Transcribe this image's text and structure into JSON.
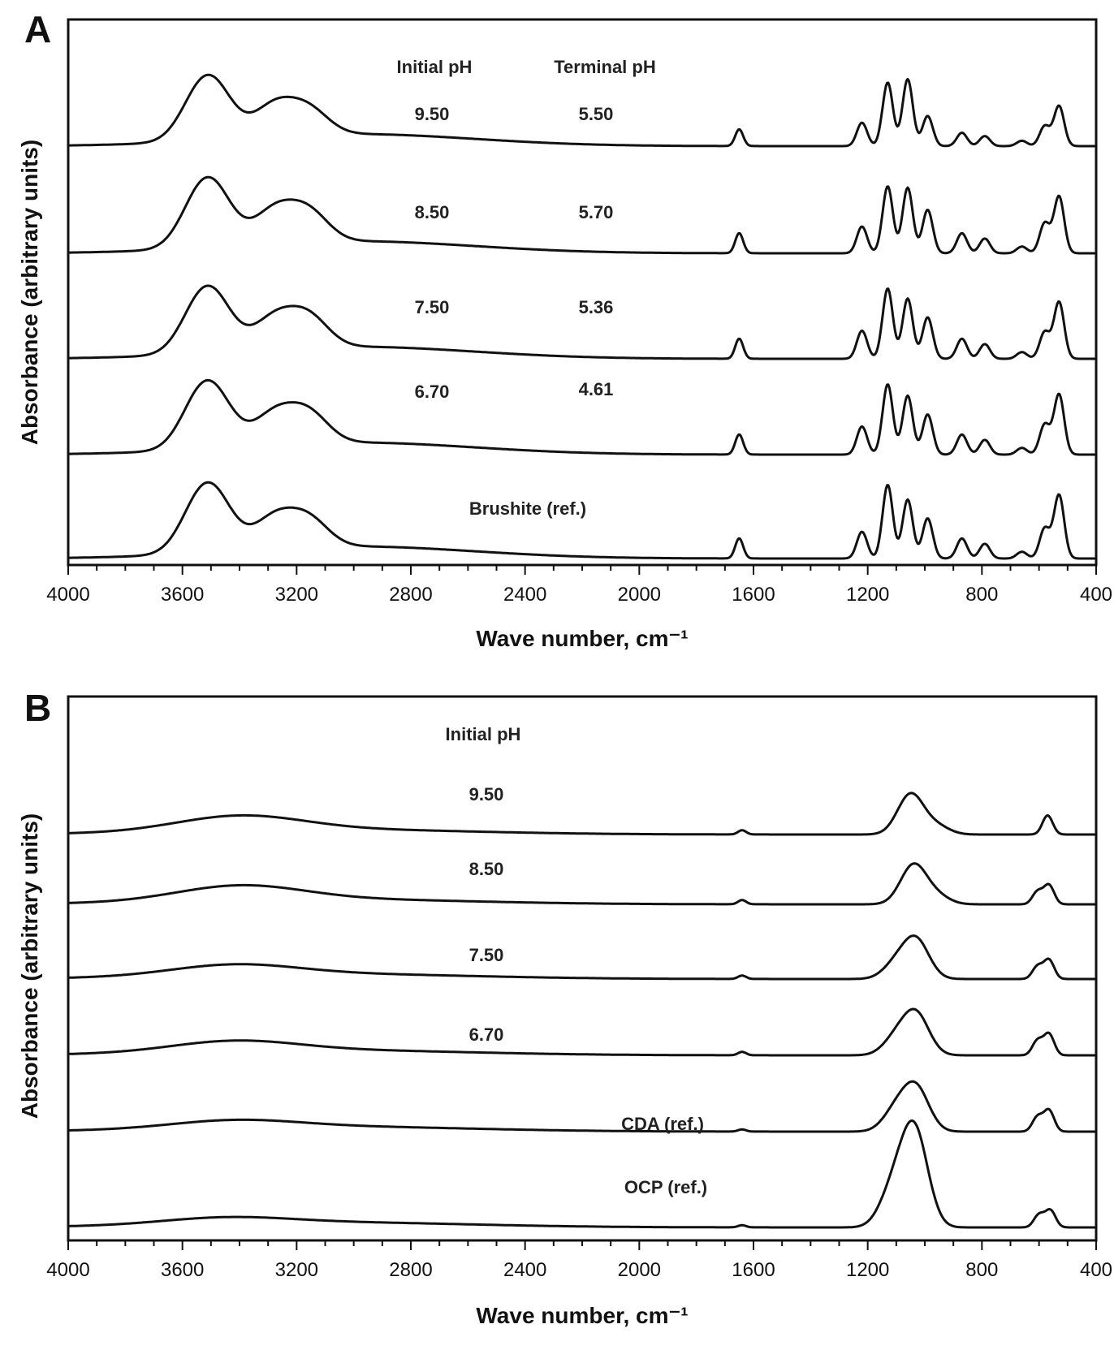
{
  "chart_data": [
    {
      "panel": "A",
      "type": "line",
      "xlabel": "Wave number, cm⁻¹",
      "ylabel": "Absorbance (arbitrary units)",
      "xlim": [
        4000,
        400
      ],
      "x_reversed": true,
      "xticks": [
        "4000",
        "3600",
        "3200",
        "2800",
        "2400",
        "2000",
        "1600",
        "1200",
        "800",
        "400"
      ],
      "column_headers": [
        "Initial pH",
        "Terminal pH"
      ],
      "series": [
        {
          "name": "9.50",
          "terminal_ph": "5.50",
          "offset": 4,
          "kind": "brushite",
          "peaks": [
            [
              3540,
              0.55
            ],
            [
              3480,
              0.52
            ],
            [
              3280,
              0.45
            ],
            [
              3160,
              0.38
            ],
            [
              1650,
              0.25
            ],
            [
              1220,
              0.35
            ],
            [
              1130,
              0.95
            ],
            [
              1060,
              1.0
            ],
            [
              990,
              0.45
            ],
            [
              870,
              0.2
            ],
            [
              790,
              0.15
            ],
            [
              660,
              0.08
            ],
            [
              580,
              0.3
            ],
            [
              530,
              0.6
            ]
          ]
        },
        {
          "name": "8.50",
          "terminal_ph": "5.70",
          "offset": 3,
          "kind": "brushite",
          "peaks": [
            [
              3540,
              0.6
            ],
            [
              3480,
              0.55
            ],
            [
              3280,
              0.48
            ],
            [
              3160,
              0.45
            ],
            [
              1650,
              0.3
            ],
            [
              1220,
              0.4
            ],
            [
              1130,
              1.0
            ],
            [
              1060,
              0.98
            ],
            [
              990,
              0.65
            ],
            [
              870,
              0.3
            ],
            [
              790,
              0.22
            ],
            [
              660,
              0.1
            ],
            [
              580,
              0.45
            ],
            [
              530,
              0.85
            ]
          ]
        },
        {
          "name": "7.50",
          "terminal_ph": "5.36",
          "offset": 2,
          "kind": "brushite",
          "peaks": [
            [
              3540,
              0.58
            ],
            [
              3480,
              0.52
            ],
            [
              3280,
              0.45
            ],
            [
              3160,
              0.46
            ],
            [
              1650,
              0.3
            ],
            [
              1220,
              0.42
            ],
            [
              1130,
              1.05
            ],
            [
              1060,
              0.9
            ],
            [
              990,
              0.62
            ],
            [
              870,
              0.3
            ],
            [
              790,
              0.22
            ],
            [
              660,
              0.1
            ],
            [
              580,
              0.4
            ],
            [
              530,
              0.85
            ]
          ]
        },
        {
          "name": "6.70",
          "terminal_ph": "4.61",
          "offset": 1,
          "kind": "brushite",
          "peaks": [
            [
              3540,
              0.6
            ],
            [
              3480,
              0.52
            ],
            [
              3280,
              0.45
            ],
            [
              3160,
              0.45
            ],
            [
              1650,
              0.3
            ],
            [
              1220,
              0.42
            ],
            [
              1130,
              1.05
            ],
            [
              1060,
              0.88
            ],
            [
              990,
              0.6
            ],
            [
              870,
              0.3
            ],
            [
              790,
              0.22
            ],
            [
              660,
              0.1
            ],
            [
              580,
              0.45
            ],
            [
              530,
              0.9
            ]
          ]
        },
        {
          "name": "Brushite (ref.)",
          "terminal_ph": "",
          "offset": 0,
          "kind": "brushite",
          "peaks": [
            [
              3540,
              0.6
            ],
            [
              3480,
              0.55
            ],
            [
              3280,
              0.45
            ],
            [
              3160,
              0.42
            ],
            [
              1650,
              0.3
            ],
            [
              1220,
              0.4
            ],
            [
              1130,
              1.1
            ],
            [
              1060,
              0.88
            ],
            [
              990,
              0.6
            ],
            [
              870,
              0.3
            ],
            [
              790,
              0.22
            ],
            [
              660,
              0.1
            ],
            [
              580,
              0.45
            ],
            [
              530,
              0.95
            ]
          ]
        }
      ]
    },
    {
      "panel": "B",
      "type": "line",
      "xlabel": "Wave number, cm⁻¹",
      "ylabel": "Absorbance (arbitrary units)",
      "xlim": [
        4000,
        400
      ],
      "x_reversed": true,
      "xticks": [
        "4000",
        "3600",
        "3200",
        "2800",
        "2400",
        "2000",
        "1600",
        "1200",
        "800",
        "400"
      ],
      "column_headers": [
        "Initial pH"
      ],
      "series": [
        {
          "name": "9.50",
          "offset": 5,
          "kind": "apatite",
          "peaks": [
            [
              3400,
              0.35
            ],
            [
              1640,
              0.1
            ],
            [
              1050,
              0.95
            ],
            [
              960,
              0.2
            ],
            [
              570,
              0.45
            ]
          ]
        },
        {
          "name": "8.50",
          "offset": 4,
          "kind": "apatite",
          "peaks": [
            [
              3400,
              0.35
            ],
            [
              1640,
              0.1
            ],
            [
              1040,
              0.92
            ],
            [
              960,
              0.2
            ],
            [
              605,
              0.3
            ],
            [
              565,
              0.45
            ]
          ]
        },
        {
          "name": "7.50",
          "offset": 3,
          "kind": "apatite",
          "peaks": [
            [
              3420,
              0.25
            ],
            [
              1640,
              0.08
            ],
            [
              1100,
              0.35
            ],
            [
              1030,
              0.9
            ],
            [
              605,
              0.3
            ],
            [
              565,
              0.45
            ]
          ]
        },
        {
          "name": "6.70",
          "offset": 2,
          "kind": "apatite",
          "peaks": [
            [
              3420,
              0.25
            ],
            [
              1640,
              0.08
            ],
            [
              1100,
              0.4
            ],
            [
              1030,
              0.95
            ],
            [
              605,
              0.35
            ],
            [
              565,
              0.5
            ]
          ]
        },
        {
          "name": "CDA (ref.)",
          "offset": 1,
          "kind": "apatite",
          "peaks": [
            [
              3420,
              0.18
            ],
            [
              1640,
              0.05
            ],
            [
              1100,
              0.5
            ],
            [
              1030,
              1.0
            ],
            [
              605,
              0.35
            ],
            [
              565,
              0.5
            ]
          ]
        },
        {
          "name": "OCP (ref.)",
          "offset": 0,
          "kind": "apatite",
          "peaks": [
            [
              3450,
              0.15
            ],
            [
              1640,
              0.05
            ],
            [
              1120,
              0.6
            ],
            [
              1080,
              0.5
            ],
            [
              1040,
              1.1
            ],
            [
              1025,
              1.0
            ],
            [
              600,
              0.3
            ],
            [
              560,
              0.4
            ]
          ]
        }
      ]
    }
  ],
  "panels": {
    "A": {
      "letter": "A",
      "header_initial": "Initial pH",
      "header_terminal": "Terminal pH",
      "labels": [
        {
          "initial": "9.50",
          "terminal": "5.50"
        },
        {
          "initial": "8.50",
          "terminal": "5.70"
        },
        {
          "initial": "7.50",
          "terminal": "5.36"
        },
        {
          "initial": "6.70",
          "terminal": "4.61"
        }
      ],
      "ref_label": "Brushite (ref.)",
      "xlabel": "Wave number, cm⁻¹",
      "ylabel": "Absorbance (arbitrary units)"
    },
    "B": {
      "letter": "B",
      "header_initial": "Initial pH",
      "labels": [
        "9.50",
        "8.50",
        "7.50",
        "6.70"
      ],
      "ref_labels": [
        "CDA (ref.)",
        "OCP (ref.)"
      ],
      "xlabel": "Wave number, cm⁻¹",
      "ylabel": "Absorbance (arbitrary units)"
    }
  },
  "colors": {
    "line": "#111111",
    "background": "#ffffff"
  }
}
